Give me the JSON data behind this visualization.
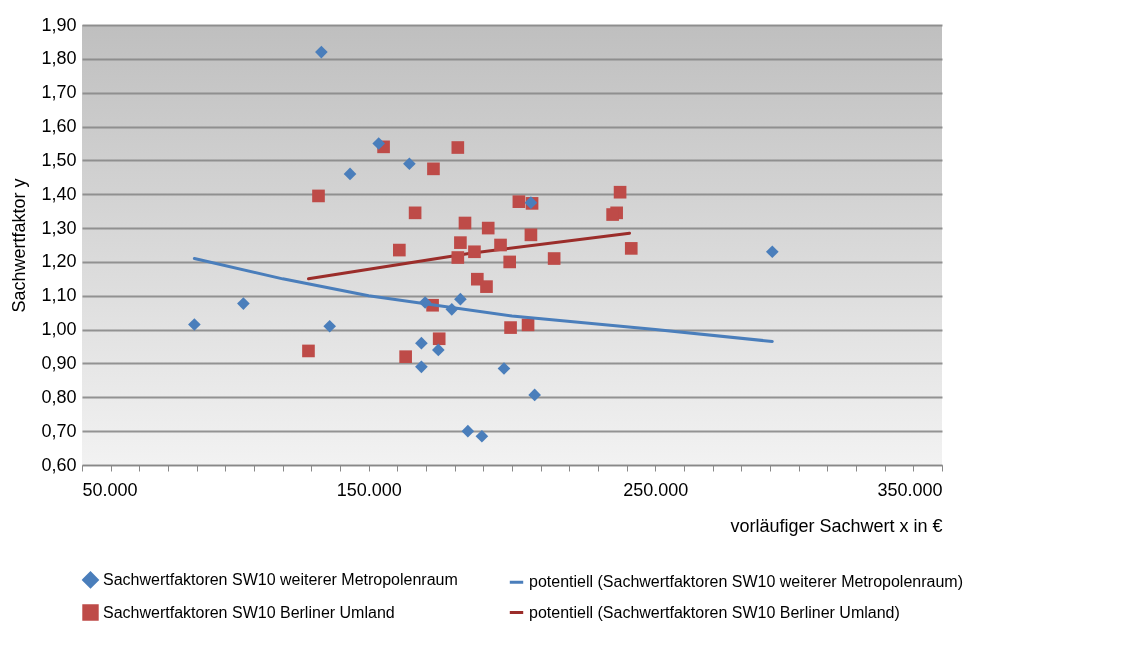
{
  "chart_data": {
    "type": "scatter",
    "xlabel": "vorläufiger Sachwert  x  in €",
    "ylabel": "Sachwertfaktor  y",
    "xlim": [
      50000,
      350000
    ],
    "ylim": [
      0.6,
      1.9
    ],
    "xticks": [
      {
        "value": 50000,
        "label": "50.000"
      },
      {
        "value": 60000,
        "label": null
      },
      {
        "value": 70000,
        "label": null
      },
      {
        "value": 80000,
        "label": null
      },
      {
        "value": 90000,
        "label": null
      },
      {
        "value": 100000,
        "label": null
      },
      {
        "value": 110000,
        "label": null
      },
      {
        "value": 120000,
        "label": null
      },
      {
        "value": 130000,
        "label": null
      },
      {
        "value": 140000,
        "label": null
      },
      {
        "value": 150000,
        "label": "150.000"
      },
      {
        "value": 160000,
        "label": null
      },
      {
        "value": 170000,
        "label": null
      },
      {
        "value": 180000,
        "label": null
      },
      {
        "value": 190000,
        "label": null
      },
      {
        "value": 200000,
        "label": null
      },
      {
        "value": 210000,
        "label": null
      },
      {
        "value": 220000,
        "label": null
      },
      {
        "value": 230000,
        "label": null
      },
      {
        "value": 240000,
        "label": null
      },
      {
        "value": 250000,
        "label": "250.000"
      },
      {
        "value": 260000,
        "label": null
      },
      {
        "value": 270000,
        "label": null
      },
      {
        "value": 280000,
        "label": null
      },
      {
        "value": 290000,
        "label": null
      },
      {
        "value": 300000,
        "label": null
      },
      {
        "value": 310000,
        "label": null
      },
      {
        "value": 320000,
        "label": null
      },
      {
        "value": 330000,
        "label": null
      },
      {
        "value": 340000,
        "label": null
      },
      {
        "value": 350000,
        "label": "350.000"
      }
    ],
    "yticks": [
      {
        "value": 0.6,
        "label": "0,60"
      },
      {
        "value": 0.7,
        "label": "0,70"
      },
      {
        "value": 0.8,
        "label": "0,80"
      },
      {
        "value": 0.9,
        "label": "0,90"
      },
      {
        "value": 1.0,
        "label": "1,00"
      },
      {
        "value": 1.1,
        "label": "1,10"
      },
      {
        "value": 1.2,
        "label": "1,20"
      },
      {
        "value": 1.3,
        "label": "1,30"
      },
      {
        "value": 1.4,
        "label": "1,40"
      },
      {
        "value": 1.5,
        "label": "1,50"
      },
      {
        "value": 1.6,
        "label": "1,60"
      },
      {
        "value": 1.7,
        "label": "1,70"
      },
      {
        "value": 1.8,
        "label": "1,80"
      },
      {
        "value": 1.9,
        "label": "1,90"
      }
    ],
    "grid": "y",
    "legend": "bottom",
    "series": [
      {
        "name": "Sachwertfaktoren  SW10 weiterer Metropolenraum",
        "type": "scatter",
        "marker": "diamond",
        "color": "#4a7ebb",
        "x": [
          133500,
          153500,
          143500,
          164200,
          206600,
          89200,
          106300,
          136400,
          169700,
          182000,
          179000,
          168400,
          174300,
          168400,
          197200,
          207900,
          184600,
          189500,
          290800
        ],
        "values": [
          1.82,
          1.55,
          1.46,
          1.49,
          1.375,
          1.015,
          1.077,
          1.01,
          1.08,
          1.09,
          1.06,
          0.96,
          0.94,
          0.89,
          0.885,
          0.807,
          0.7,
          0.685,
          1.23
        ]
      },
      {
        "name": "potentiell (Sachwertfaktoren SW10 weiterer Metropolenraum)",
        "type": "line",
        "marker": "none",
        "color": "#4a7ebb",
        "x": [
          89200,
          120000,
          150000,
          200000,
          250000,
          290800
        ],
        "values": [
          1.21,
          1.15,
          1.1,
          1.04,
          1.0,
          0.965
        ]
      },
      {
        "name": "Sachwertfaktoren  SW10 Berliner Umland",
        "type": "scatter",
        "marker": "square",
        "color": "#be4b48",
        "x": [
          155200,
          181100,
          172600,
          166200,
          237700,
          236500,
          235100,
          202400,
          207000,
          183600,
          191700,
          160700,
          182000,
          186900,
          181100,
          196000,
          206600,
          199200,
          214700,
          241600,
          187900,
          191100,
          172300,
          199500,
          205600,
          174600,
          162900,
          132500,
          129000
        ],
        "values": [
          1.54,
          1.538,
          1.475,
          1.345,
          1.406,
          1.345,
          1.34,
          1.378,
          1.373,
          1.315,
          1.3,
          1.235,
          1.257,
          1.23,
          1.213,
          1.25,
          1.28,
          1.2,
          1.21,
          1.24,
          1.149,
          1.127,
          1.072,
          1.006,
          1.014,
          0.973,
          0.92,
          1.395,
          0.937
        ]
      },
      {
        "name": "potentiell (Sachwertfaktoren SW10 Berliner Umland)",
        "type": "line",
        "marker": "none",
        "color": "#9b2d2a",
        "x": [
          129000,
          185000,
          241000
        ],
        "values": [
          1.15,
          1.225,
          1.285
        ]
      }
    ]
  }
}
